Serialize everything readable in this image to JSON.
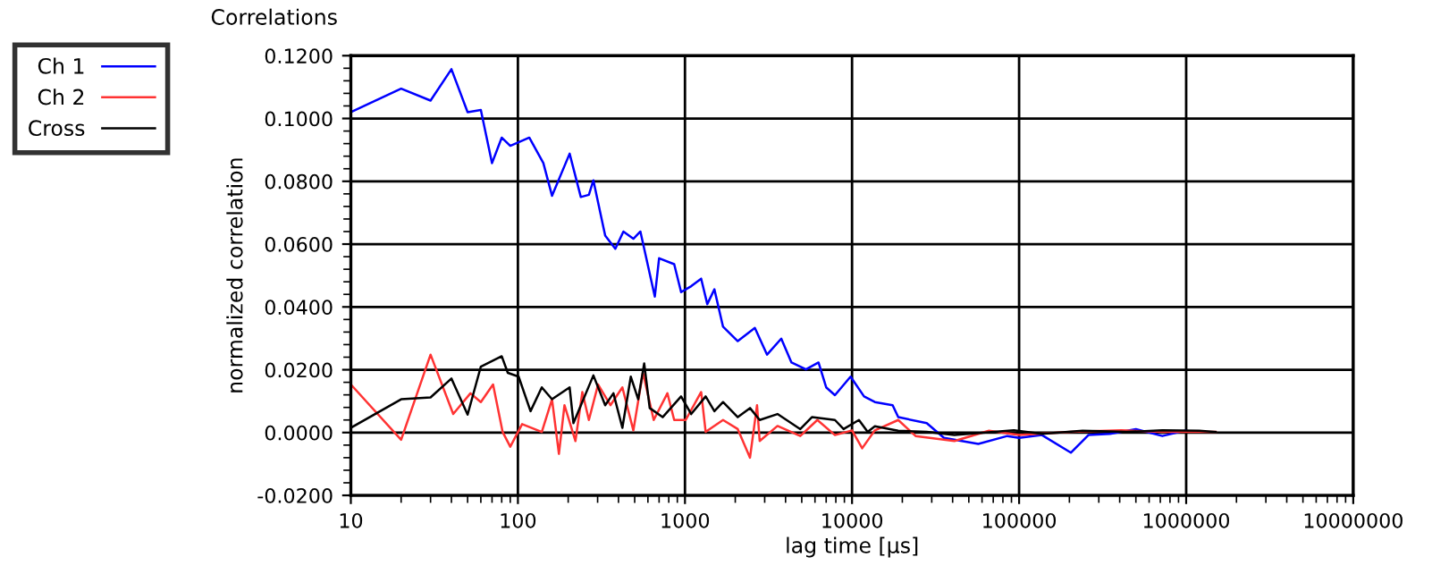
{
  "chart_data": {
    "type": "line",
    "title": "Correlations",
    "xlabel": "lag time [µs]",
    "ylabel": "normalized correlation",
    "log": "x",
    "grid": true,
    "legend": "left",
    "marker": "none",
    "line_style": "solid",
    "xlim": [
      10,
      10000000
    ],
    "xticks": [
      10,
      100,
      1000,
      10000,
      100000,
      1000000,
      10000000
    ],
    "ylim": [
      -0.02,
      0.12
    ],
    "yticks": [
      {
        "value": -0.02,
        "label": "-0.0200"
      },
      {
        "value": 0,
        "label": "0.0000"
      },
      {
        "value": 0.02,
        "label": "0.0200"
      },
      {
        "value": 0.04,
        "label": "0.0400"
      },
      {
        "value": 0.06,
        "label": "0.0600"
      },
      {
        "value": 0.08,
        "label": "0.0800"
      },
      {
        "value": 0.1,
        "label": "0.1000"
      },
      {
        "value": 0.12,
        "label": "0.1200"
      }
    ],
    "series": [
      {
        "name": "Ch 1",
        "color": "#0000ff",
        "x": [
          10,
          20,
          30,
          40,
          50,
          60,
          70,
          80,
          90,
          117,
          142,
          160,
          204,
          238,
          266,
          283,
          333,
          383,
          428,
          491,
          541,
          660,
          700,
          862,
          948,
          1090,
          1250,
          1360,
          1500,
          1690,
          2070,
          2620,
          3100,
          3770,
          4340,
          5300,
          6300,
          7000,
          7900,
          9800,
          11800,
          13700,
          17500,
          18900,
          28000,
          35500,
          57000,
          85000,
          100000,
          137000,
          204000,
          260000,
          350000,
          500000,
          720000,
          990000
        ],
        "values": [
          0.102,
          0.1095,
          0.1057,
          0.1157,
          0.102,
          0.1027,
          0.0858,
          0.0939,
          0.0913,
          0.0939,
          0.0858,
          0.0754,
          0.0888,
          0.075,
          0.0757,
          0.0803,
          0.0627,
          0.0585,
          0.064,
          0.0617,
          0.064,
          0.0433,
          0.0555,
          0.0536,
          0.0447,
          0.0466,
          0.049,
          0.0409,
          0.0456,
          0.0337,
          0.0291,
          0.0333,
          0.0248,
          0.0299,
          0.0223,
          0.0201,
          0.0223,
          0.0144,
          0.0119,
          0.0178,
          0.0115,
          0.0097,
          0.0087,
          0.0049,
          0.003,
          -0.0017,
          -0.0036,
          -0.0011,
          -0.0017,
          -0.0008,
          -0.0064,
          -0.0008,
          -0.0004,
          0.0011,
          -0.0011,
          0.0006
        ]
      },
      {
        "name": "Ch 2",
        "color": "#ff3333",
        "x": [
          10,
          20,
          30,
          41,
          52,
          60,
          71,
          81,
          90,
          106,
          139,
          160,
          176,
          190,
          221,
          243,
          266,
          302,
          358,
          422,
          491,
          560,
          650,
          785,
          862,
          1010,
          1250,
          1330,
          1690,
          2070,
          2450,
          2700,
          2800,
          3580,
          4900,
          6200,
          7900,
          10000,
          11500,
          13700,
          18900,
          24000,
          41000,
          66000,
          100000,
          204000,
          410000,
          720000,
          1500000
        ],
        "values": [
          0.0153,
          -0.0023,
          0.0248,
          0.0059,
          0.0125,
          0.0097,
          0.0153,
          0.0002,
          -0.0045,
          0.0027,
          0.0002,
          0.0106,
          -0.0068,
          0.0087,
          -0.0027,
          0.0129,
          0.004,
          0.0153,
          0.0087,
          0.0144,
          0.0007,
          0.0191,
          0.004,
          0.0125,
          0.004,
          0.004,
          0.0129,
          0.0002,
          0.004,
          0.0011,
          -0.008,
          0.0087,
          -0.0027,
          0.0021,
          -0.0011,
          0.004,
          -0.0008,
          0.0007,
          -0.005,
          0.0007,
          0.004,
          -0.0011,
          -0.0027,
          0.0006,
          -0.0008,
          0.0002,
          0.0007,
          0.0002,
          0.0002
        ]
      },
      {
        "name": "Cross",
        "color": "#000000",
        "x": [
          10,
          20,
          30,
          40,
          50,
          60,
          80,
          87,
          101,
          119,
          139,
          160,
          204,
          215,
          283,
          333,
          373,
          422,
          474,
          525,
          570,
          615,
          735,
          948,
          1090,
          1330,
          1500,
          1690,
          2070,
          2450,
          2800,
          3580,
          4900,
          5750,
          7900,
          8900,
          11000,
          12400,
          13700,
          18900,
          28000,
          41000,
          93000,
          137000,
          240000,
          440000,
          720000,
          1200000,
          1500000
        ],
        "values": [
          0.0015,
          0.0106,
          0.0112,
          0.0172,
          0.0057,
          0.021,
          0.0243,
          0.019,
          0.0178,
          0.0068,
          0.0144,
          0.0106,
          0.0144,
          0.003,
          0.0182,
          0.0087,
          0.0125,
          0.0015,
          0.0178,
          0.0106,
          0.022,
          0.0078,
          0.0049,
          0.0115,
          0.0059,
          0.0115,
          0.0068,
          0.0097,
          0.0049,
          0.0078,
          0.004,
          0.0059,
          0.0011,
          0.0049,
          0.004,
          0.0011,
          0.004,
          0.0002,
          0.002,
          0.0006,
          0.0002,
          -0.0008,
          0.0007,
          -0.0004,
          0.0006,
          0.0002,
          0.0007,
          0.0006,
          0.0002
        ]
      }
    ]
  }
}
